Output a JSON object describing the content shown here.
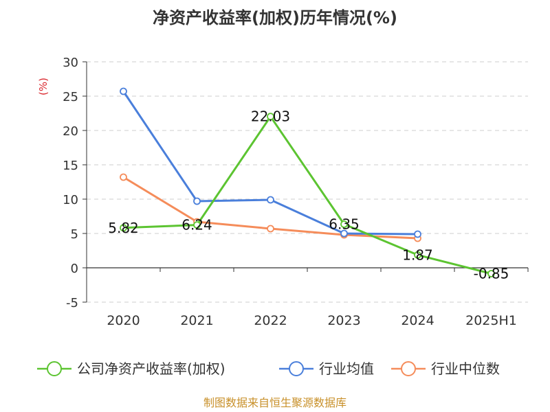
{
  "chart_data": {
    "type": "line",
    "title": "净资产收益率(加权)历年情况(%)",
    "ylabel": "(%)",
    "xlabel": "",
    "ylim": [
      -5,
      30
    ],
    "yticks": [
      "30",
      "25",
      "20",
      "15",
      "10",
      "5",
      "0",
      "-5"
    ],
    "categories": [
      "2020",
      "2021",
      "2022",
      "2023",
      "2024",
      "2025H1"
    ],
    "grid": true,
    "legend_position": "bottom",
    "series": [
      {
        "name": "公司净资产收益率(加权)",
        "color": "#5cc431",
        "values": [
          5.82,
          6.24,
          22.03,
          6.35,
          1.87,
          -0.85
        ],
        "labels": [
          "5.82",
          "6.24",
          "22.03",
          "6.35",
          "1.87",
          "-0.85"
        ]
      },
      {
        "name": "行业均值",
        "color": "#4a7fdb",
        "values": [
          25.7,
          9.7,
          9.9,
          5.0,
          4.9,
          null
        ]
      },
      {
        "name": "行业中位数",
        "color": "#f58c5a",
        "values": [
          13.2,
          6.7,
          5.7,
          4.8,
          4.3,
          null
        ]
      }
    ]
  },
  "footer": {
    "source": "制图数据来自恒生聚源数据库"
  }
}
